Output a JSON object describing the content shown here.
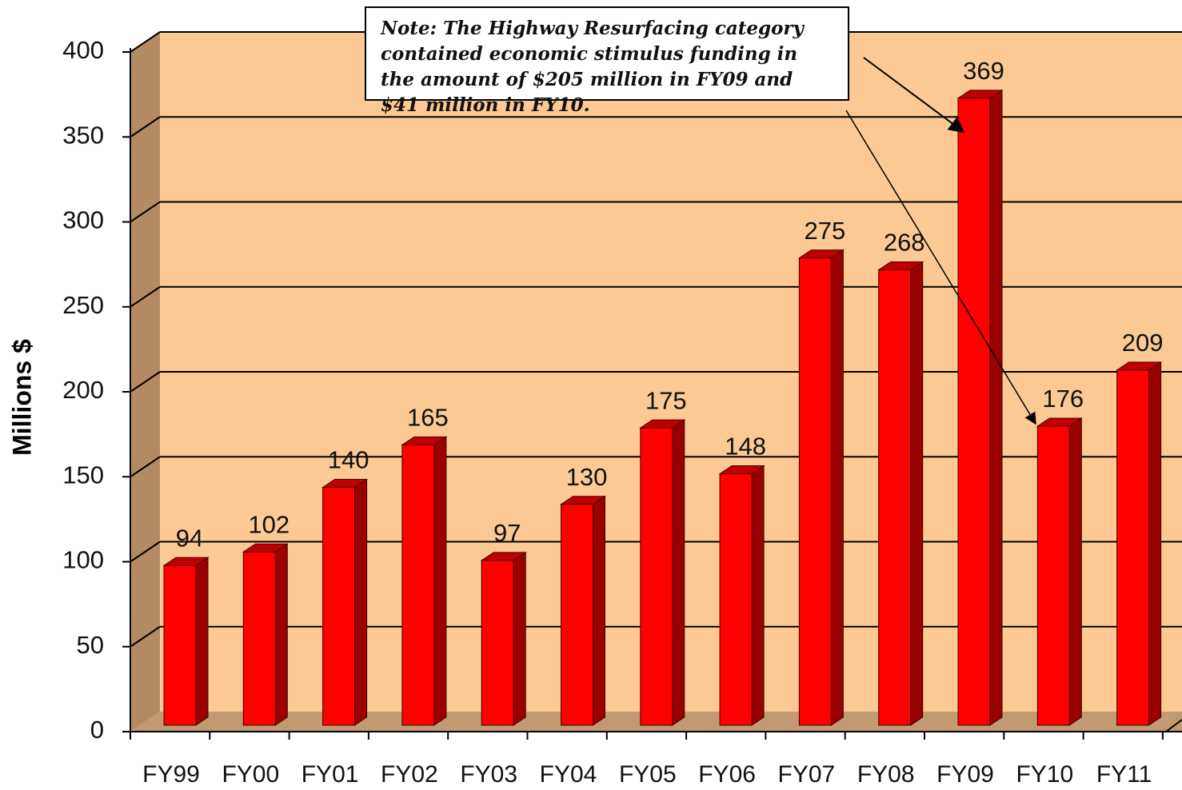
{
  "chart_data": {
    "type": "bar",
    "ylabel": "Millions $",
    "annotation": "Note: The Highway Resurfacing category contained  economic stimulus funding in the amount of $205 million in FY09 and $41 million in FY10.",
    "categories": [
      "FY99",
      "FY00",
      "FY01",
      "FY02",
      "FY03",
      "FY04",
      "FY05",
      "FY06",
      "FY07",
      "FY08",
      "FY09",
      "FY10",
      "FY11"
    ],
    "values": [
      94,
      102,
      140,
      165,
      97,
      130,
      175,
      148,
      275,
      268,
      369,
      176,
      209
    ],
    "color": "#ff0000",
    "ylim": [
      0,
      400
    ],
    "yticks": [
      0,
      50,
      100,
      150,
      200,
      250,
      300,
      350,
      400
    ],
    "grid": true
  }
}
